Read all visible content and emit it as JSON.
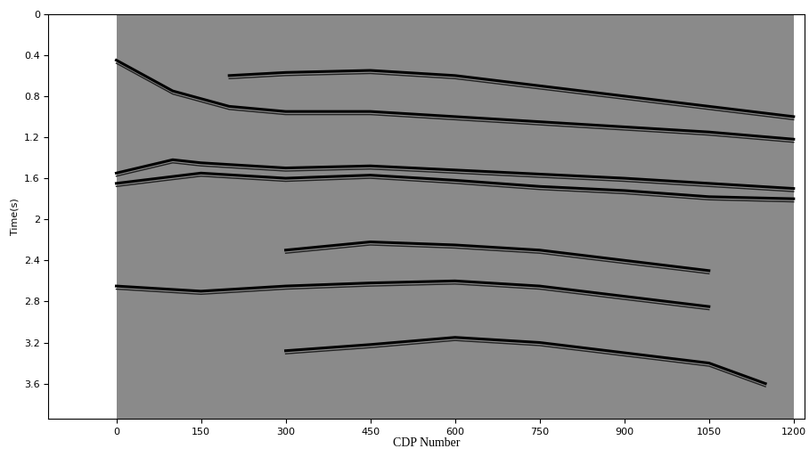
{
  "chart_data": {
    "type": "seismic",
    "xlabel": "CDP Number",
    "ylabel": "Time(s)",
    "xlim": [
      -120,
      1220
    ],
    "ylim": [
      3.94,
      0
    ],
    "xticks": [
      0,
      150,
      300,
      450,
      600,
      750,
      900,
      1050,
      1200
    ],
    "yticks": [
      0,
      0.4,
      0.8,
      1.2,
      1.6,
      2,
      2.4,
      2.8,
      3.2,
      3.6
    ],
    "grid": false,
    "color": "#8a8a8a",
    "traces": {
      "cdp": [
        0,
        1200
      ]
    },
    "horizons": [
      {
        "x": [
          200,
          300,
          450,
          600,
          750,
          900,
          1050,
          1200
        ],
        "values": [
          0.6,
          0.57,
          0.55,
          0.6,
          0.7,
          0.8,
          0.9,
          1.0
        ]
      },
      {
        "x": [
          0,
          100,
          200,
          300,
          450,
          600,
          750,
          900,
          1050,
          1200
        ],
        "values": [
          0.45,
          0.75,
          0.9,
          0.95,
          0.95,
          1.0,
          1.05,
          1.1,
          1.15,
          1.22
        ]
      },
      {
        "x": [
          0,
          100,
          150,
          300,
          450,
          600,
          750,
          900,
          1050,
          1200
        ],
        "values": [
          1.55,
          1.42,
          1.45,
          1.5,
          1.48,
          1.52,
          1.56,
          1.6,
          1.65,
          1.7
        ]
      },
      {
        "x": [
          0,
          150,
          300,
          450,
          600,
          750,
          900,
          1050,
          1200
        ],
        "values": [
          1.65,
          1.55,
          1.6,
          1.57,
          1.62,
          1.68,
          1.72,
          1.78,
          1.8
        ]
      },
      {
        "x": [
          300,
          450,
          600,
          750,
          900,
          1050
        ],
        "values": [
          2.3,
          2.22,
          2.25,
          2.3,
          2.4,
          2.5
        ]
      },
      {
        "x": [
          0,
          150,
          300,
          450,
          600,
          750,
          900,
          1050
        ],
        "values": [
          2.65,
          2.7,
          2.65,
          2.62,
          2.6,
          2.65,
          2.75,
          2.85
        ]
      },
      {
        "x": [
          300,
          450,
          600,
          750,
          900,
          1050,
          1150
        ],
        "values": [
          3.28,
          3.22,
          3.15,
          3.2,
          3.3,
          3.4,
          3.6
        ]
      }
    ]
  }
}
